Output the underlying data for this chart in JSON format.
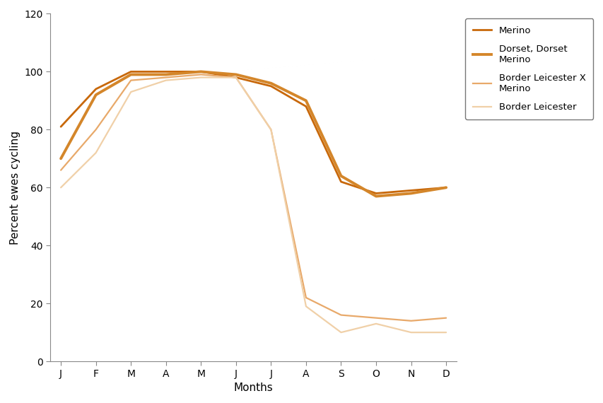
{
  "months": [
    "J",
    "F",
    "M",
    "A",
    "M",
    "J",
    "J",
    "A",
    "S",
    "O",
    "N",
    "D"
  ],
  "series": [
    {
      "label": "Merino",
      "color": "#c8680a",
      "linewidth": 2.0,
      "values": [
        81,
        94,
        100,
        100,
        100,
        98,
        95,
        88,
        62,
        58,
        59,
        60
      ]
    },
    {
      "label": "Dorset, Dorset\nMerino",
      "color": "#d4862a",
      "linewidth": 2.8,
      "values": [
        70,
        92,
        99,
        99,
        100,
        99,
        96,
        90,
        64,
        57,
        58,
        60
      ]
    },
    {
      "label": "Border Leicester X\nMerino",
      "color": "#e8a96a",
      "linewidth": 1.6,
      "values": [
        66,
        80,
        97,
        98,
        99,
        98,
        80,
        22,
        16,
        15,
        14,
        15
      ]
    },
    {
      "label": "Border Leicester",
      "color": "#f0d0a8",
      "linewidth": 1.6,
      "values": [
        60,
        72,
        93,
        97,
        98,
        98,
        80,
        19,
        10,
        13,
        10,
        10
      ]
    }
  ],
  "xlabel": "Months",
  "ylabel": "Percent ewes cycling",
  "ylim": [
    0,
    120
  ],
  "yticks": [
    0,
    20,
    40,
    60,
    80,
    100,
    120
  ],
  "background_color": "#ffffff",
  "axis_fontsize": 11,
  "tick_fontsize": 10
}
